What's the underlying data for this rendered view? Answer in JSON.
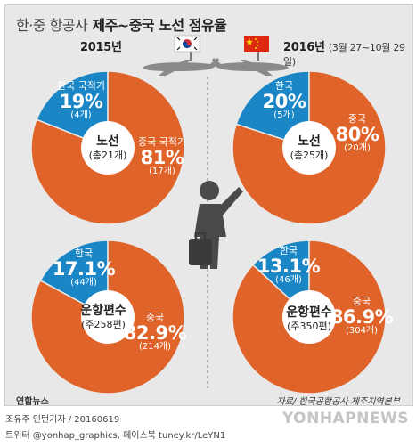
{
  "header": {
    "title_light": "한·중 항공사",
    "title_bold": "제주~중국 노선 점유율"
  },
  "left": {
    "year": "2015년"
  },
  "right": {
    "year": "2016년",
    "range": "(3월 27~10월 29일)"
  },
  "chart_data": [
    {
      "type": "pie",
      "group": "2015년",
      "center_title": "노선",
      "center_sub": "(총21개)",
      "slices": [
        {
          "label": "한국 국적기",
          "percent": 19,
          "percent_text": "19%",
          "count_text": "(4개)",
          "color": "#1a86c6"
        },
        {
          "label": "중국 국적기",
          "percent": 81,
          "percent_text": "81%",
          "count_text": "(17개)",
          "color": "#e0632a"
        }
      ]
    },
    {
      "type": "pie",
      "group": "2016년",
      "center_title": "노선",
      "center_sub": "(총25개)",
      "slices": [
        {
          "label": "한국",
          "percent": 20,
          "percent_text": "20%",
          "count_text": "(5개)",
          "color": "#1a86c6"
        },
        {
          "label": "중국",
          "percent": 80,
          "percent_text": "80%",
          "count_text": "(20개)",
          "color": "#e0632a"
        }
      ]
    },
    {
      "type": "pie",
      "group": "2015년",
      "center_title": "운항편수",
      "center_sub": "(주258편)",
      "slices": [
        {
          "label": "한국",
          "percent": 17.1,
          "percent_text": "17.1%",
          "count_text": "(44개)",
          "color": "#1a86c6"
        },
        {
          "label": "중국",
          "percent": 82.9,
          "percent_text": "82.9%",
          "count_text": "(214개)",
          "color": "#e0632a"
        }
      ]
    },
    {
      "type": "pie",
      "group": "2016년",
      "center_title": "운항편수",
      "center_sub": "(주350편)",
      "slices": [
        {
          "label": "한국",
          "percent": 13.1,
          "percent_text": "13.1%",
          "count_text": "(46개)",
          "color": "#1a86c6"
        },
        {
          "label": "중국",
          "percent": 86.9,
          "percent_text": "86.9%",
          "count_text": "(304개)",
          "color": "#e0632a"
        }
      ]
    }
  ],
  "source": "자료/ 한국공항공사 제주지역본부",
  "logo": "연합뉴스",
  "credit_line1": "조유주 인턴기자 / 20160619",
  "credit_line2": "트위터 @yonhap_graphics, 페이스북 tuney.kr/LeYN1",
  "watermark": "YONHAPNEWS",
  "colors": {
    "korea": "#1a86c6",
    "china": "#e0632a",
    "background": "#e8e8e8",
    "plane": "#8a8a8a",
    "person": "#4a4a4a"
  },
  "icons": [
    "korea-flag-icon",
    "china-flag-icon",
    "airplane-icon",
    "traveler-icon"
  ]
}
